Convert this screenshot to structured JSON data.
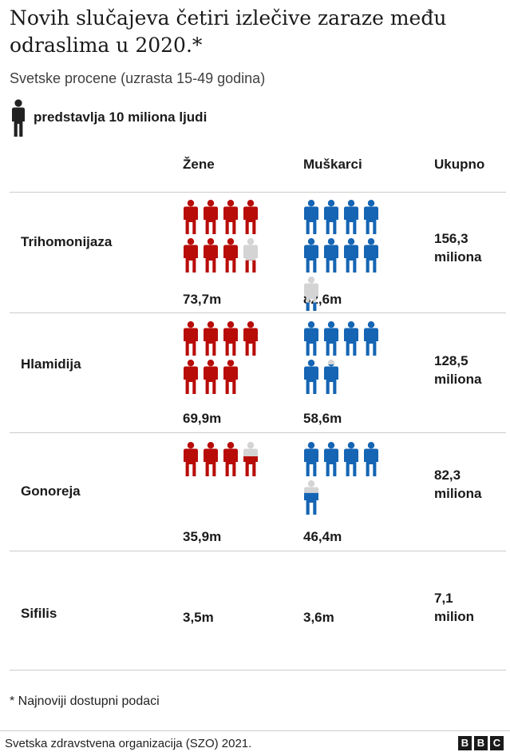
{
  "title": "Novih slučajeva četiri izlečive zaraze među odraslima u 2020.*",
  "subtitle": "Svetske procene (uzrasta 15-49 godina)",
  "legend": {
    "text": "predstavlja 10 miliona ljudi"
  },
  "columns": {
    "women": "Žene",
    "men": "Muškarci",
    "total": "Ukupno"
  },
  "colors": {
    "women": "#b80c09",
    "men": "#1565b4",
    "partial": "#d4d4d4",
    "legend_icon": "#222222"
  },
  "chart_data": {
    "type": "pictogram",
    "unit": "10 miliona ljudi",
    "rows": [
      {
        "name": "Trihomonijaza",
        "women": 73.7,
        "men": 82.6,
        "women_label": "73,7m",
        "men_label": "82,6m",
        "total_line1": "156,3",
        "total_line2": "miliona"
      },
      {
        "name": "Hlamidija",
        "women": 69.9,
        "men": 58.6,
        "women_label": "69,9m",
        "men_label": "58,6m",
        "total_line1": "128,5",
        "total_line2": "miliona"
      },
      {
        "name": "Gonoreja",
        "women": 35.9,
        "men": 46.4,
        "women_label": "35,9m",
        "men_label": "46,4m",
        "total_line1": "82,3",
        "total_line2": "miliona"
      },
      {
        "name": "Sifilis",
        "women": 3.5,
        "men": 3.6,
        "women_label": "3,5m",
        "men_label": "3,6m",
        "total_line1": "7,1",
        "total_line2": "milion"
      }
    ]
  },
  "footnote": "* Najnoviji dostupni podaci",
  "source": "Svetska zdravstvena organizacija (SZO) 2021.",
  "logo": [
    "B",
    "B",
    "C"
  ]
}
